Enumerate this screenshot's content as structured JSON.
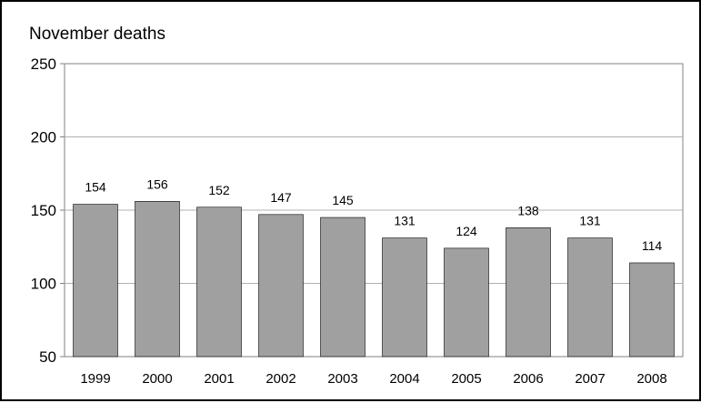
{
  "chart_data": {
    "type": "bar",
    "title": "November deaths",
    "xlabel": "",
    "ylabel": "",
    "categories": [
      "1999",
      "2000",
      "2001",
      "2002",
      "2003",
      "2004",
      "2005",
      "2006",
      "2007",
      "2008"
    ],
    "values": [
      154,
      156,
      152,
      147,
      145,
      131,
      124,
      138,
      131,
      114
    ],
    "data_labels": [
      "154",
      "156",
      "152",
      "147",
      "145",
      "131",
      "124",
      "138",
      "131",
      "114"
    ],
    "ylim": [
      50,
      250
    ],
    "yticks": [
      50,
      100,
      150,
      200,
      250
    ],
    "ytick_labels": [
      "50",
      "100",
      "150",
      "200",
      "250"
    ],
    "grid": true,
    "legend": "none",
    "colors": {
      "bar_fill": "#a0a0a0",
      "bar_stroke": "#000000",
      "gridline": "#b0b0b0",
      "axis": "#808080",
      "frame": "#000000"
    }
  }
}
